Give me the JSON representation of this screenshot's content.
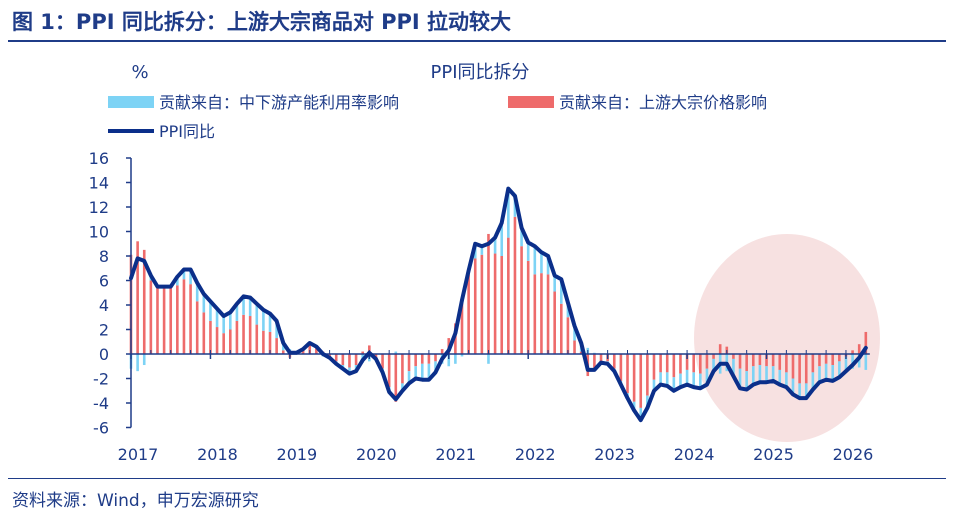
{
  "figure_title": "图 1：PPI 同比拆分：上游大宗商品对 PPI 拉动较大",
  "source": "资料来源：Wind，申万宏源研究",
  "chart_data": {
    "type": "bar+line",
    "title": "PPI同比拆分",
    "ylabel": "%",
    "ylim": [
      -6,
      16
    ],
    "yticks": [
      -6,
      -4,
      -2,
      0,
      2,
      4,
      6,
      8,
      10,
      12,
      14,
      16
    ],
    "xticks": [
      "2017",
      "2018",
      "2019",
      "2020",
      "2021",
      "2022",
      "2023",
      "2024",
      "2025",
      "2026"
    ],
    "x_start": "2017-01",
    "x_freq": "monthly",
    "legend_placement": "top",
    "colors": {
      "midstream": "#7dd3f5",
      "upstream": "#ee6b6b",
      "ppi": "#0b2f8a",
      "highlight": "#f6dcdc",
      "axis": "#1f3c88"
    },
    "series": [
      {
        "name": "贡献来自：中下游产能利用率影响",
        "type": "bar",
        "values": [
          -1.2,
          -1.4,
          -0.9,
          0.4,
          0.1,
          0.1,
          0,
          0.7,
          0.8,
          1.2,
          1.5,
          1.5,
          1.6,
          1.5,
          1.4,
          1.4,
          1.4,
          1.5,
          1.5,
          1.7,
          1.7,
          1.5,
          1.4,
          0.6,
          0.4,
          0,
          0,
          0.1,
          0,
          -0.2,
          0,
          -0.2,
          -0.3,
          -0.5,
          -0.5,
          -0.7,
          -0.6,
          -0.1,
          -0.3,
          -0.4,
          0.2,
          -0.6,
          -1,
          -1,
          -1.3,
          -1.3,
          -0.9,
          -0.8,
          -1.0,
          -0.8,
          -0.2,
          0.3,
          1.2,
          0.7,
          -0.8,
          1.3,
          2.7,
          4.0,
          1.7,
          1.5,
          1.5,
          2.3,
          1.7,
          1.5,
          1.3,
          2.0,
          1.2,
          1.2,
          0.7,
          0.5,
          0.1,
          -0.1,
          -0.2,
          -0.2,
          -0.3,
          -0.4,
          -0.7,
          -1.0,
          -1.0,
          -0.9,
          -1.0,
          -1.1,
          -1.1,
          -1.1,
          -1.2,
          -1.2,
          -1.2,
          -1.3,
          -1.0,
          -1.6,
          -1.4,
          -1.4,
          -1.6,
          -1.5,
          -1.5,
          -1.4,
          -1.3,
          -1.2,
          -1.2,
          -1.2,
          -1.3,
          -1.2,
          -1.2,
          -1.4,
          -1.3,
          -1.3,
          -1.3,
          -1.3,
          -1.2,
          -1.2,
          -1.1,
          -1.3
        ]
      },
      {
        "name": "贡献来自：上游大宗价格影响",
        "type": "bar",
        "values": [
          8.1,
          9.2,
          8.5,
          6.0,
          5.4,
          5.4,
          5.5,
          5.6,
          6.1,
          5.7,
          4.3,
          3.4,
          2.7,
          2.2,
          1.7,
          2.0,
          2.7,
          3.2,
          3.1,
          2.4,
          1.9,
          1.8,
          1.3,
          0.3,
          -0.3,
          0.1,
          0.4,
          0.8,
          0.6,
          0.2,
          -0.3,
          -0.6,
          -0.9,
          -1.1,
          -0.9,
          0.2,
          0.7,
          -0.3,
          -1.2,
          -2.7,
          -3.9,
          -2.4,
          -1.4,
          -1.0,
          -0.8,
          -0.8,
          -0.6,
          0.4,
          1.3,
          2.5,
          4.6,
          6.5,
          7.8,
          8.1,
          9.8,
          8.2,
          8.0,
          9.5,
          11.2,
          8.8,
          7.6,
          6.5,
          6.6,
          6.5,
          5.1,
          4.1,
          3.0,
          1.1,
          0.2,
          -1.8,
          -1.4,
          -0.6,
          -0.6,
          -1.2,
          -2.2,
          -3.2,
          -3.9,
          -4.4,
          -3.4,
          -2.1,
          -1.5,
          -1.5,
          -1.9,
          -1.6,
          -1.3,
          -1.5,
          -1.6,
          -1.2,
          -0.4,
          0.8,
          0.6,
          -0.4,
          -1.2,
          -1.4,
          -1.0,
          -0.9,
          -1.0,
          -1.0,
          -1.3,
          -1.5,
          -2.0,
          -2.4,
          -2.4,
          -1.5,
          -1.0,
          -0.8,
          -0.9,
          -0.6,
          -0.2,
          0.3,
          0.8,
          1.8
        ]
      },
      {
        "name": "PPI同比",
        "type": "line",
        "values": [
          6.2,
          7.8,
          7.6,
          6.4,
          5.5,
          5.5,
          5.5,
          6.3,
          6.9,
          6.9,
          5.8,
          4.9,
          4.3,
          3.7,
          3.1,
          3.4,
          4.1,
          4.7,
          4.6,
          4.1,
          3.6,
          3.3,
          2.7,
          0.9,
          0.1,
          0.1,
          0.4,
          0.9,
          0.6,
          0.0,
          -0.3,
          -0.8,
          -1.2,
          -1.6,
          -1.4,
          -0.5,
          0.1,
          -0.4,
          -1.5,
          -3.1,
          -3.7,
          -3.0,
          -2.4,
          -2.0,
          -2.1,
          -2.1,
          -1.5,
          -0.4,
          0.3,
          1.7,
          4.4,
          6.8,
          9.0,
          8.8,
          9.0,
          9.5,
          10.7,
          13.5,
          12.9,
          10.3,
          9.1,
          8.8,
          8.3,
          8.0,
          6.4,
          6.1,
          4.2,
          2.3,
          0.9,
          -1.3,
          -1.3,
          -0.7,
          -0.8,
          -1.4,
          -2.5,
          -3.6,
          -4.6,
          -5.4,
          -4.4,
          -3.0,
          -2.5,
          -2.6,
          -3.0,
          -2.7,
          -2.5,
          -2.7,
          -2.8,
          -2.5,
          -1.4,
          -0.8,
          -0.8,
          -1.8,
          -2.8,
          -2.9,
          -2.5,
          -2.3,
          -2.3,
          -2.2,
          -2.5,
          -2.7,
          -3.3,
          -3.6,
          -3.6,
          -2.9,
          -2.3,
          -2.1,
          -2.2,
          -1.9,
          -1.4,
          -0.9,
          -0.3,
          0.5
        ]
      }
    ]
  }
}
